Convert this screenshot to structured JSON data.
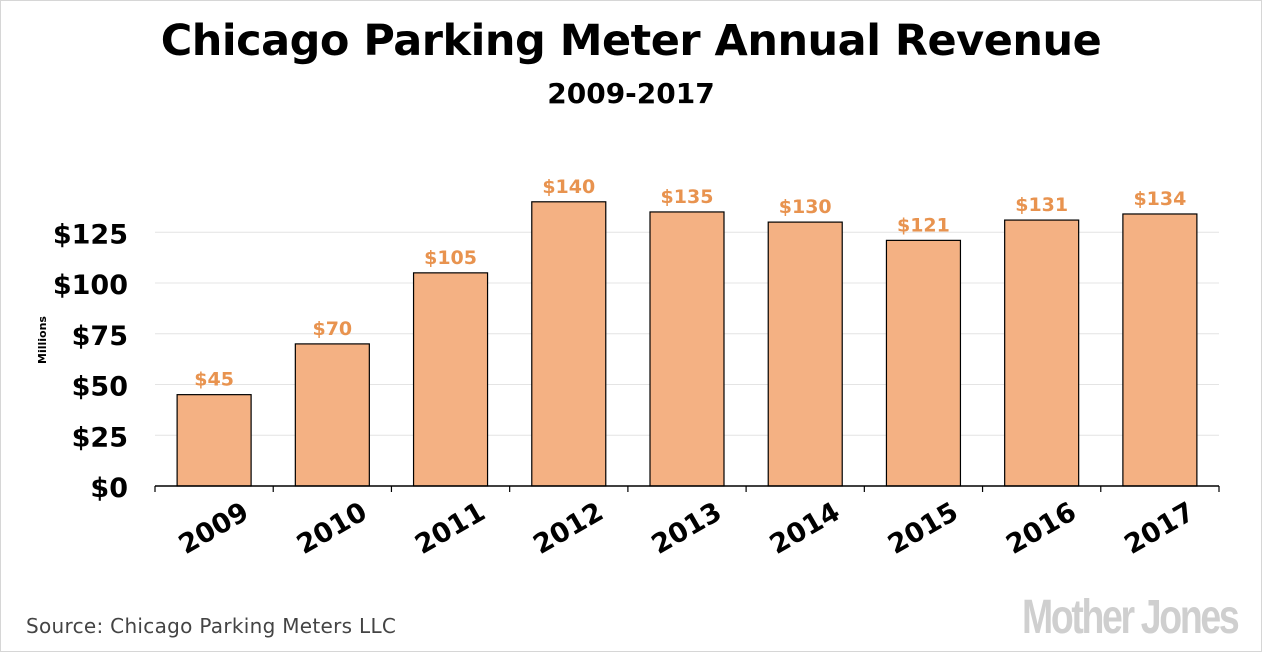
{
  "title": "Chicago Parking Meter Annual Revenue",
  "subtitle": "2009-2017",
  "source": "Source: Chicago Parking Meters LLC",
  "logo_text": "Mother Jones",
  "colors": {
    "bar_fill": "#f4b183",
    "bar_stroke": "#000000",
    "data_label": "#e8934f",
    "grid": "#e4e4e4",
    "text": "#000000"
  },
  "chart_data": {
    "type": "bar",
    "categories": [
      "2009",
      "2010",
      "2011",
      "2012",
      "2013",
      "2014",
      "2015",
      "2016",
      "2017"
    ],
    "values": [
      45,
      70,
      105,
      140,
      135,
      130,
      121,
      131,
      134
    ],
    "data_labels": [
      "$45",
      "$70",
      "$105",
      "$140",
      "$135",
      "$130",
      "$121",
      "$131",
      "$134"
    ],
    "title": "Chicago Parking Meter Annual Revenue",
    "subtitle": "2009-2017",
    "xlabel": "",
    "ylabel": "Millions",
    "ylim": [
      0,
      140
    ],
    "yticks": [
      0,
      25,
      50,
      75,
      100,
      125
    ],
    "ytick_labels": [
      "$0",
      "$25",
      "$50",
      "$75",
      "$100",
      "$125"
    ],
    "grid": true,
    "legend": "none"
  }
}
